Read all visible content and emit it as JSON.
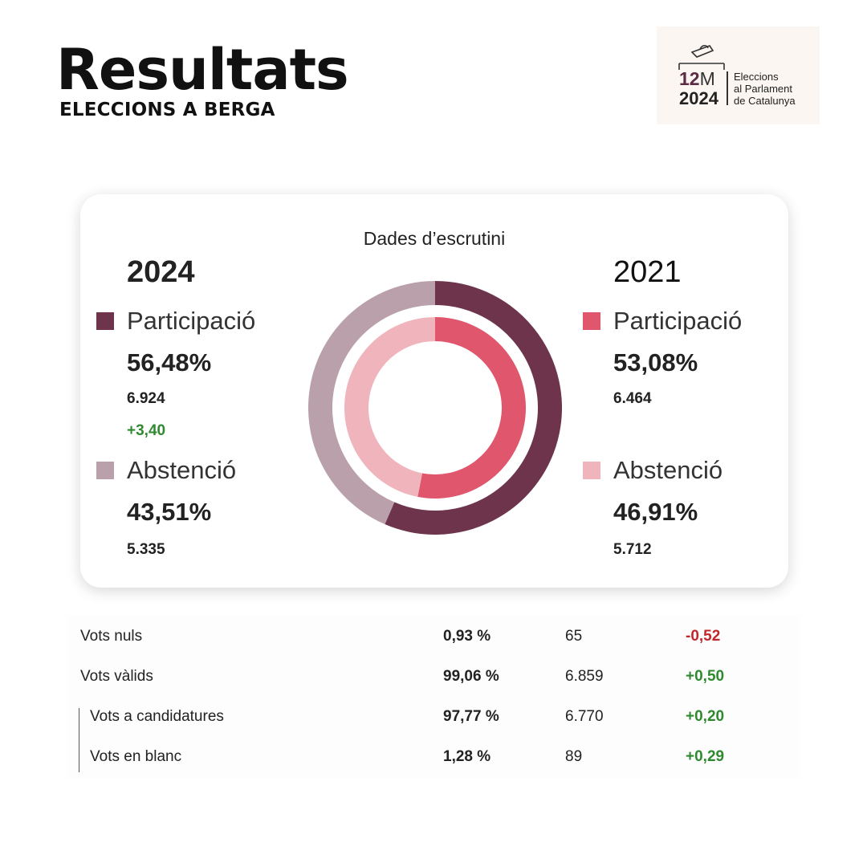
{
  "header": {
    "title": "Resultats",
    "subtitle": "ELECCIONS A BERGA"
  },
  "logo": {
    "date_num": "12",
    "date_letter": "M",
    "year": "2024",
    "lines": [
      "Eleccions",
      "al Parlament",
      "de Catalunya"
    ]
  },
  "card": {
    "title": "Dades d’escrutini",
    "left": {
      "year": "2024",
      "participation_label": "Participació",
      "participation_pct": "56,48%",
      "participation_votes": "6.924",
      "participation_delta": "+3,40",
      "abstention_label": "Abstenció",
      "abstention_pct": "43,51%",
      "abstention_votes": "5.335"
    },
    "right": {
      "year": "2021",
      "participation_label": "Participació",
      "participation_pct": "53,08%",
      "participation_votes": "6.464",
      "abstention_label": "Abstenció",
      "abstention_pct": "46,91%",
      "abstention_votes": "5.712"
    }
  },
  "colors": {
    "participation_2024": "#6e344b",
    "abstention_2024": "#b9a0aa",
    "participation_2021": "#e0566c",
    "abstention_2021": "#f0b4bc",
    "positive": "#2f8a2f",
    "negative": "#c0272d"
  },
  "chart_data": {
    "type": "pie",
    "title": "Dades d’escrutini",
    "series": [
      {
        "name": "2024",
        "ring": "outer",
        "categories": [
          "Participació",
          "Abstenció"
        ],
        "values": [
          56.48,
          43.51
        ]
      },
      {
        "name": "2021",
        "ring": "inner",
        "categories": [
          "Participació",
          "Abstenció"
        ],
        "values": [
          53.08,
          46.91
        ]
      }
    ]
  },
  "table": {
    "rows": [
      {
        "label": "Vots nuls",
        "pct": "0,93 %",
        "num": "65",
        "delta": "-0,52",
        "sign": "neg",
        "indent": false
      },
      {
        "label": "Vots vàlids",
        "pct": "99,06 %",
        "num": "6.859",
        "delta": "+0,50",
        "sign": "pos",
        "indent": false
      },
      {
        "label": "Vots a candidatures",
        "pct": "97,77 %",
        "num": "6.770",
        "delta": "+0,20",
        "sign": "pos",
        "indent": true
      },
      {
        "label": "Vots en blanc",
        "pct": "1,28 %",
        "num": "89",
        "delta": "+0,29",
        "sign": "pos",
        "indent": true
      }
    ]
  }
}
